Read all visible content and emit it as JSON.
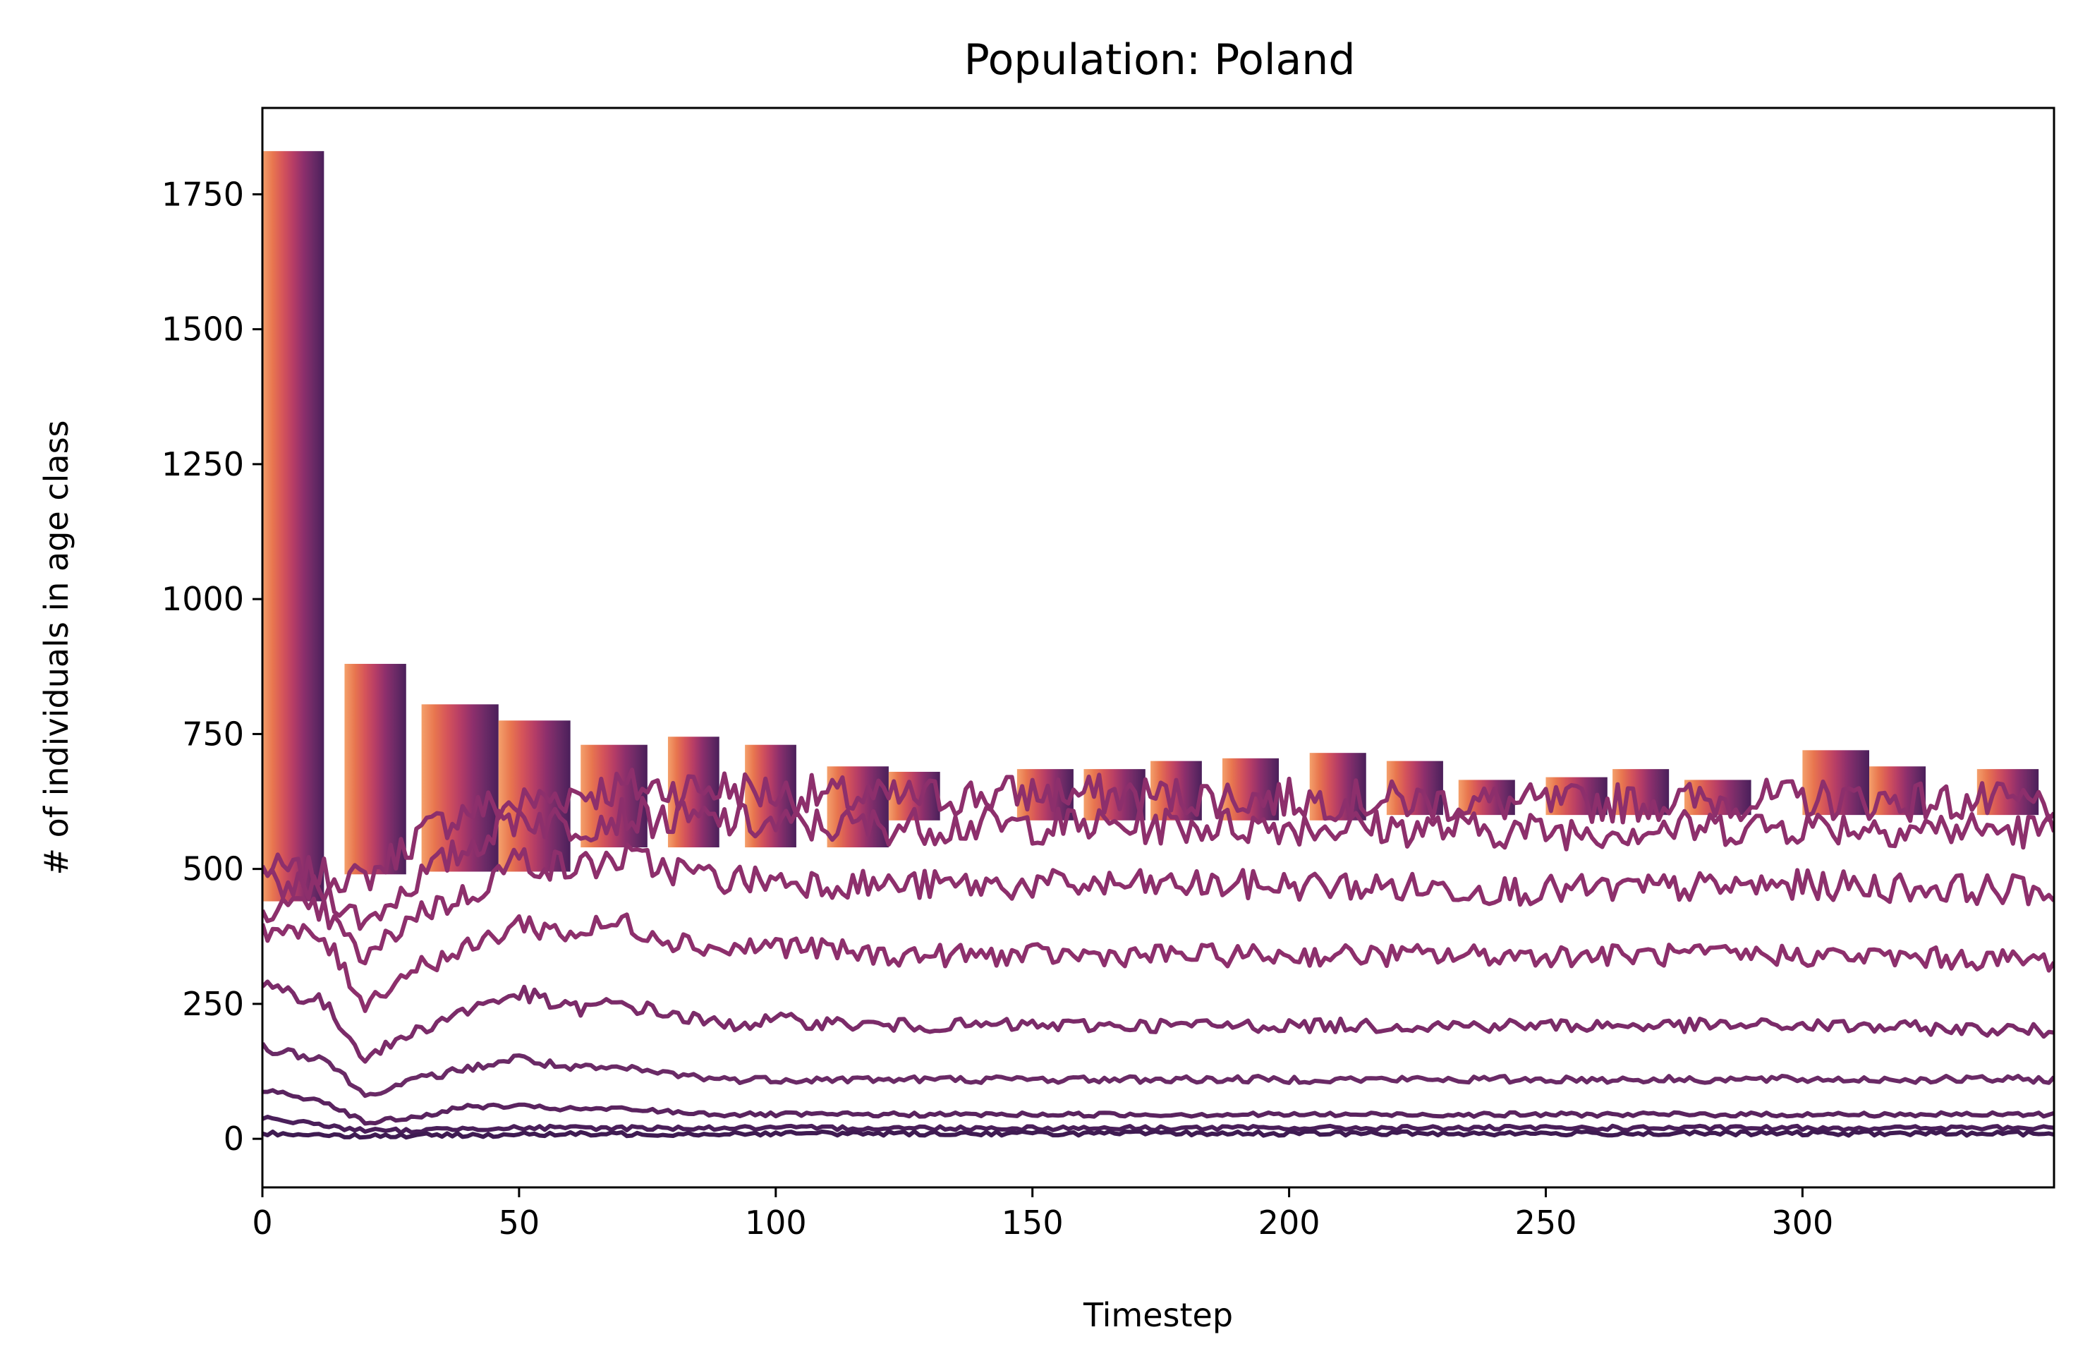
{
  "chart_data": {
    "type": "line",
    "title": "Population: Poland",
    "xlabel": "Timestep",
    "ylabel": "# of individuals in age class",
    "xlim": [
      0,
      349
    ],
    "ylim": [
      -90,
      1910
    ],
    "xticks": [
      0,
      50,
      100,
      150,
      200,
      250,
      300
    ],
    "yticks": [
      0,
      250,
      500,
      750,
      1000,
      1250,
      1500,
      1750
    ],
    "grid": false,
    "legend": "none",
    "colormap": [
      "#f4a06b",
      "#e8764f",
      "#d5545a",
      "#b63d66",
      "#8d2f6c",
      "#6a2a66",
      "#4a1f5a"
    ],
    "series": [
      {
        "values": [
          [
            0,
            500
          ],
          [
            12,
            490
          ],
          [
            20,
            480
          ],
          [
            30,
            560
          ],
          [
            40,
            610
          ],
          [
            50,
            620
          ],
          [
            60,
            640
          ],
          [
            70,
            650
          ],
          [
            80,
            650
          ],
          [
            90,
            650
          ],
          [
            100,
            640
          ],
          [
            120,
            630
          ],
          [
            150,
            640
          ],
          [
            200,
            630
          ],
          [
            250,
            620
          ],
          [
            300,
            630
          ],
          [
            349,
            620
          ]
        ],
        "color": "#8d2f6c"
      },
      {
        "values": [
          [
            0,
            470
          ],
          [
            12,
            460
          ],
          [
            20,
            400
          ],
          [
            30,
            480
          ],
          [
            40,
            540
          ],
          [
            50,
            600
          ],
          [
            60,
            580
          ],
          [
            70,
            600
          ],
          [
            80,
            590
          ],
          [
            90,
            590
          ],
          [
            100,
            580
          ],
          [
            120,
            580
          ],
          [
            150,
            580
          ],
          [
            200,
            580
          ],
          [
            250,
            570
          ],
          [
            300,
            580
          ],
          [
            349,
            570
          ]
        ],
        "color": "#8d2f6c"
      },
      {
        "values": [
          [
            0,
            430
          ],
          [
            12,
            420
          ],
          [
            20,
            330
          ],
          [
            30,
            420
          ],
          [
            40,
            450
          ],
          [
            50,
            520
          ],
          [
            60,
            500
          ],
          [
            70,
            520
          ],
          [
            80,
            500
          ],
          [
            90,
            480
          ],
          [
            100,
            480
          ],
          [
            120,
            470
          ],
          [
            150,
            470
          ],
          [
            200,
            470
          ],
          [
            250,
            460
          ],
          [
            300,
            470
          ],
          [
            349,
            460
          ]
        ],
        "color": "#8d2f6c"
      },
      {
        "values": [
          [
            0,
            390
          ],
          [
            12,
            370
          ],
          [
            20,
            250
          ],
          [
            30,
            320
          ],
          [
            40,
            350
          ],
          [
            50,
            400
          ],
          [
            60,
            380
          ],
          [
            70,
            400
          ],
          [
            80,
            370
          ],
          [
            90,
            350
          ],
          [
            100,
            360
          ],
          [
            120,
            340
          ],
          [
            150,
            340
          ],
          [
            200,
            340
          ],
          [
            250,
            340
          ],
          [
            300,
            340
          ],
          [
            349,
            330
          ]
        ],
        "color": "#8d2f6c"
      },
      {
        "values": [
          [
            0,
            290
          ],
          [
            12,
            250
          ],
          [
            20,
            150
          ],
          [
            30,
            200
          ],
          [
            40,
            240
          ],
          [
            50,
            270
          ],
          [
            60,
            240
          ],
          [
            70,
            250
          ],
          [
            80,
            230
          ],
          [
            90,
            210
          ],
          [
            100,
            220
          ],
          [
            120,
            210
          ],
          [
            150,
            210
          ],
          [
            200,
            210
          ],
          [
            250,
            210
          ],
          [
            300,
            210
          ],
          [
            349,
            200
          ]
        ],
        "color": "#7b2b69"
      },
      {
        "values": [
          [
            0,
            170
          ],
          [
            12,
            150
          ],
          [
            20,
            80
          ],
          [
            30,
            110
          ],
          [
            40,
            130
          ],
          [
            50,
            150
          ],
          [
            60,
            130
          ],
          [
            70,
            130
          ],
          [
            80,
            120
          ],
          [
            90,
            110
          ],
          [
            100,
            110
          ],
          [
            120,
            110
          ],
          [
            150,
            110
          ],
          [
            200,
            110
          ],
          [
            250,
            110
          ],
          [
            300,
            110
          ],
          [
            349,
            110
          ]
        ],
        "color": "#6a2a66"
      },
      {
        "values": [
          [
            0,
            90
          ],
          [
            12,
            70
          ],
          [
            20,
            30
          ],
          [
            30,
            40
          ],
          [
            40,
            60
          ],
          [
            50,
            60
          ],
          [
            60,
            55
          ],
          [
            70,
            55
          ],
          [
            80,
            50
          ],
          [
            90,
            45
          ],
          [
            100,
            45
          ],
          [
            120,
            45
          ],
          [
            150,
            45
          ],
          [
            200,
            45
          ],
          [
            250,
            45
          ],
          [
            300,
            45
          ],
          [
            349,
            45
          ]
        ],
        "color": "#5a235f"
      },
      {
        "values": [
          [
            0,
            40
          ],
          [
            12,
            25
          ],
          [
            20,
            15
          ],
          [
            30,
            15
          ],
          [
            40,
            20
          ],
          [
            50,
            20
          ],
          [
            60,
            20
          ],
          [
            100,
            20
          ],
          [
            150,
            20
          ],
          [
            200,
            20
          ],
          [
            250,
            20
          ],
          [
            300,
            20
          ],
          [
            349,
            20
          ]
        ],
        "color": "#4a1f5a"
      },
      {
        "values": [
          [
            0,
            10
          ],
          [
            12,
            8
          ],
          [
            20,
            5
          ],
          [
            50,
            8
          ],
          [
            100,
            10
          ],
          [
            150,
            10
          ],
          [
            200,
            10
          ],
          [
            250,
            10
          ],
          [
            300,
            10
          ],
          [
            349,
            10
          ]
        ],
        "color": "#3f1b52"
      }
    ],
    "bands": [
      {
        "x": [
          0,
          12
        ],
        "y": [
          440,
          1830
        ]
      },
      {
        "x": [
          16,
          28
        ],
        "y": [
          490,
          880
        ]
      },
      {
        "x": [
          31,
          46
        ],
        "y": [
          495,
          805
        ]
      },
      {
        "x": [
          46,
          60
        ],
        "y": [
          495,
          775
        ]
      },
      {
        "x": [
          62,
          75
        ],
        "y": [
          540,
          730
        ]
      },
      {
        "x": [
          79,
          89
        ],
        "y": [
          540,
          745
        ]
      },
      {
        "x": [
          94,
          104
        ],
        "y": [
          540,
          730
        ]
      },
      {
        "x": [
          110,
          122
        ],
        "y": [
          540,
          690
        ]
      },
      {
        "x": [
          122,
          132
        ],
        "y": [
          590,
          680
        ]
      },
      {
        "x": [
          147,
          158
        ],
        "y": [
          590,
          685
        ]
      },
      {
        "x": [
          160,
          172
        ],
        "y": [
          590,
          685
        ]
      },
      {
        "x": [
          173,
          183
        ],
        "y": [
          590,
          700
        ]
      },
      {
        "x": [
          187,
          198
        ],
        "y": [
          590,
          705
        ]
      },
      {
        "x": [
          204,
          215
        ],
        "y": [
          590,
          715
        ]
      },
      {
        "x": [
          219,
          230
        ],
        "y": [
          600,
          700
        ]
      },
      {
        "x": [
          233,
          244
        ],
        "y": [
          600,
          665
        ]
      },
      {
        "x": [
          250,
          262
        ],
        "y": [
          600,
          670
        ]
      },
      {
        "x": [
          263,
          274
        ],
        "y": [
          600,
          685
        ]
      },
      {
        "x": [
          277,
          290
        ],
        "y": [
          600,
          665
        ]
      },
      {
        "x": [
          300,
          313
        ],
        "y": [
          600,
          720
        ]
      },
      {
        "x": [
          313,
          324
        ],
        "y": [
          600,
          690
        ]
      },
      {
        "x": [
          334,
          346
        ],
        "y": [
          600,
          685
        ]
      }
    ]
  }
}
